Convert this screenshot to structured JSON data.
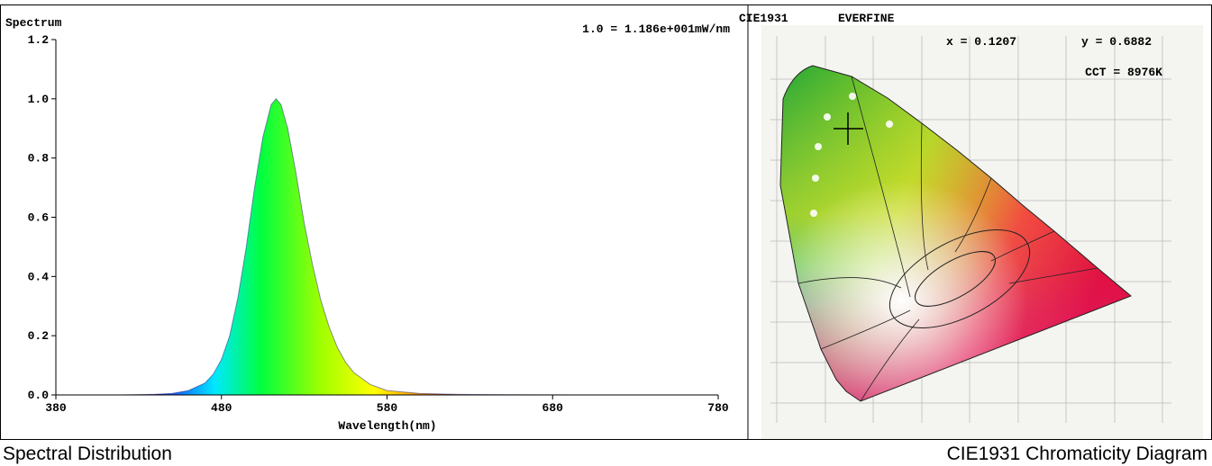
{
  "chart_data": {
    "type": "area",
    "title": "1.0 = 1.186e+001mW/nm",
    "y_label": "Spectrum",
    "x_label": "Wavelength(nm)",
    "x": [
      380,
      400,
      420,
      440,
      450,
      460,
      470,
      475,
      480,
      485,
      490,
      495,
      500,
      505,
      510,
      513,
      516,
      520,
      525,
      530,
      535,
      540,
      545,
      550,
      555,
      560,
      570,
      580,
      600,
      620,
      650,
      700,
      750,
      780
    ],
    "values": [
      0,
      0,
      0,
      0.002,
      0.005,
      0.015,
      0.04,
      0.07,
      0.12,
      0.2,
      0.33,
      0.5,
      0.7,
      0.87,
      0.98,
      1.0,
      0.98,
      0.9,
      0.75,
      0.58,
      0.44,
      0.32,
      0.23,
      0.16,
      0.11,
      0.075,
      0.035,
      0.015,
      0.005,
      0.002,
      0.001,
      0,
      0,
      0
    ],
    "xlim": [
      380,
      780
    ],
    "xticks": [
      380,
      480,
      580,
      680,
      780
    ],
    "ylim": [
      0,
      1.2
    ],
    "yticks": [
      {
        "value": 0,
        "label": "0.0"
      },
      0.2,
      0.4,
      0.6,
      0.8,
      {
        "value": 1,
        "label": "1.0"
      },
      1.2
    ],
    "caption": "Spectral Distribution"
  },
  "cie": {
    "title": "CIE1931",
    "brand": "EVERFINE",
    "x_text": "x = 0.1207",
    "y_text": "y = 0.6882",
    "cct": "CCT = 8976K",
    "caption": "CIE1931 Chromaticity Diagram"
  }
}
